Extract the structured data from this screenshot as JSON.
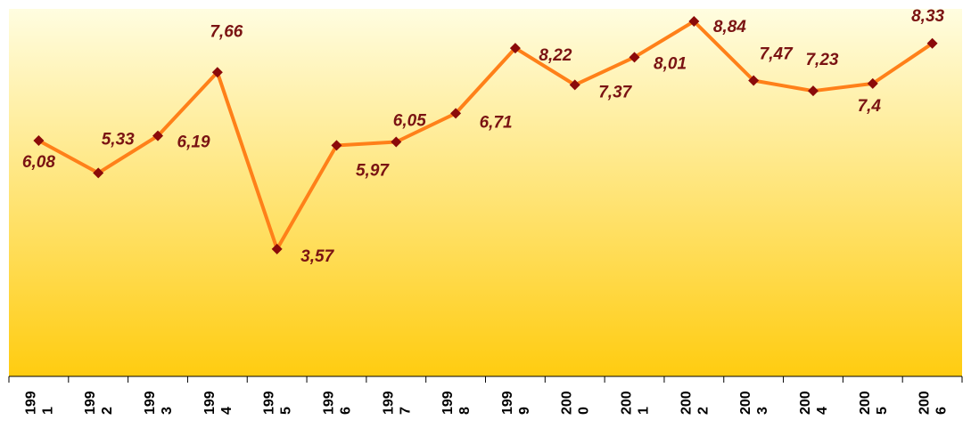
{
  "chart_data": {
    "type": "line",
    "title": "",
    "xlabel": "",
    "ylabel": "",
    "categories": [
      "1991",
      "1992",
      "1993",
      "1994",
      "1995",
      "1996",
      "1997",
      "1998",
      "1999",
      "2000",
      "2001",
      "2002",
      "2003",
      "2004",
      "2005",
      "2006"
    ],
    "tick_labels": [
      [
        "199",
        "1"
      ],
      [
        "199",
        "2"
      ],
      [
        "199",
        "3"
      ],
      [
        "199",
        "4"
      ],
      [
        "199",
        "5"
      ],
      [
        "199",
        "6"
      ],
      [
        "199",
        "7"
      ],
      [
        "199",
        "8"
      ],
      [
        "199",
        "9"
      ],
      [
        "200",
        "0"
      ],
      [
        "200",
        "1"
      ],
      [
        "200",
        "2"
      ],
      [
        "200",
        "3"
      ],
      [
        "200",
        "4"
      ],
      [
        "200",
        "5"
      ],
      [
        "200",
        "6"
      ]
    ],
    "values": [
      6.08,
      5.33,
      6.19,
      7.66,
      3.57,
      5.97,
      6.05,
      6.71,
      8.22,
      7.37,
      8.01,
      8.84,
      7.47,
      7.23,
      7.4,
      8.33
    ],
    "data_labels": [
      "6,08",
      "5,33",
      "6,19",
      "7,66",
      "3,57",
      "5,97",
      "6,05",
      "6,71",
      "8,22",
      "7,37",
      "8,01",
      "8,84",
      "7,47",
      "7,23",
      "7,4",
      "8,33"
    ],
    "grid": false,
    "legend": "none",
    "colors": {
      "line": "#ff8019",
      "marker": "#8b0a0a",
      "label": "#7a1313",
      "background_top": "#fffde0",
      "background_bottom": "#ffcc10",
      "axis": "#000000"
    }
  }
}
